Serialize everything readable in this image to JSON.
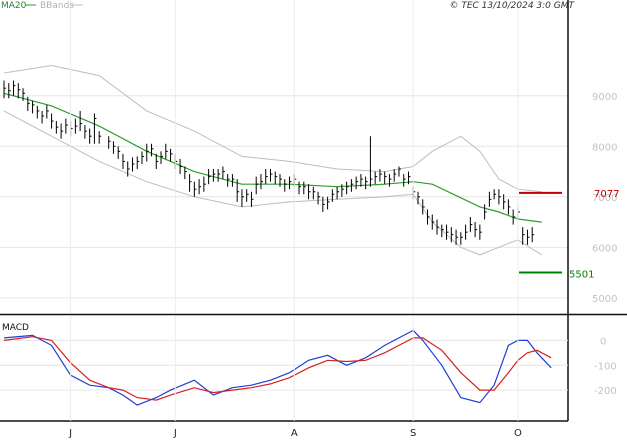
{
  "legend": {
    "ma_label": "MA20",
    "bb_label": "BBands",
    "ma_color": "#2e9e2e",
    "bb_color": "#bdbdbd"
  },
  "copyright": "© TEC 13/10/2024 3:0 GMT",
  "macd_panel": {
    "title": "MACD",
    "colors": {
      "macd": "#1f3fd6",
      "signal": "#d62020"
    }
  },
  "levels": {
    "resistance": {
      "value": 7077,
      "label": "7077",
      "color": "#c00000"
    },
    "support": {
      "value": 5501,
      "label": "5501",
      "color": "#008000"
    }
  },
  "chart_data": [
    {
      "type": "line",
      "title": "",
      "ylim": [
        4700,
        10500
      ],
      "y_ticks": [
        {
          "value": 9000,
          "label": "9000"
        },
        {
          "value": 8000,
          "label": "8000"
        },
        {
          "value": 7000,
          "label": "7000"
        },
        {
          "value": 6000,
          "label": "6000"
        },
        {
          "value": 5000,
          "label": "5000"
        }
      ],
      "x_ticks": [
        {
          "label": "J",
          "index": 14
        },
        {
          "label": "J",
          "index": 36
        },
        {
          "label": "A",
          "index": 61
        },
        {
          "label": "S",
          "index": 86
        },
        {
          "label": "O",
          "index": 108
        }
      ],
      "n_bars": 117,
      "grid": true,
      "bars_x": [
        0,
        1,
        2,
        3,
        4,
        5,
        6,
        7,
        8,
        9,
        10,
        11,
        12,
        13,
        14,
        15,
        16,
        17,
        18,
        19,
        20,
        22,
        23,
        24,
        25,
        26,
        27,
        28,
        29,
        30,
        31,
        32,
        33,
        34,
        35,
        36,
        37,
        38,
        39,
        40,
        41,
        42,
        43,
        44,
        45,
        46,
        47,
        48,
        49,
        50,
        51,
        52,
        53,
        54,
        55,
        56,
        57,
        58,
        59,
        60,
        61,
        62,
        63,
        64,
        65,
        66,
        67,
        68,
        69,
        70,
        71,
        72,
        73,
        74,
        75,
        76,
        77,
        78,
        79,
        80,
        81,
        82,
        83,
        84,
        85,
        86,
        87,
        88,
        89,
        90,
        91,
        92,
        93,
        94,
        95,
        96,
        97,
        98,
        99,
        100,
        101,
        102,
        103,
        104,
        105,
        106,
        107,
        108,
        109,
        110,
        111,
        113,
        114,
        115
      ],
      "bars_close": [
        9150,
        9100,
        9200,
        9120,
        9050,
        8850,
        8820,
        8700,
        8600,
        8700,
        8500,
        8380,
        8300,
        8420,
        8350,
        8400,
        8450,
        8300,
        8200,
        8550,
        8200,
        8100,
        8000,
        7900,
        7700,
        7550,
        7650,
        7700,
        7800,
        7900,
        7950,
        7700,
        7800,
        7900,
        7850,
        7700,
        7600,
        7500,
        7300,
        7150,
        7200,
        7250,
        7400,
        7450,
        7450,
        7500,
        7350,
        7350,
        7100,
        7000,
        7050,
        6950,
        7250,
        7300,
        7400,
        7450,
        7400,
        7350,
        7250,
        7300,
        7350,
        7200,
        7200,
        7100,
        7100,
        7000,
        6850,
        6900,
        7050,
        7100,
        7150,
        7200,
        7250,
        7300,
        7350,
        7300,
        7350,
        7400,
        7450,
        7400,
        7350,
        7450,
        7550,
        7350,
        7400,
        7100,
        7000,
        6800,
        6600,
        6500,
        6400,
        6350,
        6300,
        6250,
        6200,
        6200,
        6300,
        6450,
        6350,
        6300,
        6700,
        6950,
        7050,
        7000,
        6900,
        6800,
        6600,
        6700,
        6250,
        6200,
        6250
      ],
      "bars_high": [
        9300,
        9250,
        9300,
        9250,
        9150,
        8980,
        8900,
        8800,
        8700,
        8820,
        8650,
        8500,
        8450,
        8550,
        8500,
        8550,
        8700,
        8420,
        8350,
        8650,
        8300,
        8200,
        8100,
        8000,
        7850,
        7700,
        7780,
        7800,
        7900,
        8050,
        8050,
        7850,
        7900,
        8050,
        7950,
        7850,
        7750,
        7600,
        7450,
        7300,
        7350,
        7400,
        7550,
        7550,
        7550,
        7600,
        7450,
        7450,
        7350,
        7150,
        7150,
        7100,
        7400,
        7450,
        7550,
        7550,
        7500,
        7450,
        7350,
        7400,
        7450,
        7300,
        7300,
        7250,
        7200,
        7100,
        7000,
        7000,
        7150,
        7200,
        7250,
        7300,
        7350,
        7400,
        7450,
        7400,
        8200,
        7500,
        7550,
        7500,
        7450,
        7550,
        7600,
        7450,
        7500,
        7200,
        7100,
        6950,
        6750,
        6650,
        6550,
        6450,
        6450,
        6400,
        6350,
        6300,
        6450,
        6600,
        6500,
        6450,
        6850,
        7100,
        7150,
        7150,
        7050,
        6950,
        6750,
        6800,
        6400,
        6350,
        6400
      ],
      "bars_low": [
        8950,
        8950,
        9000,
        8950,
        8900,
        8700,
        8650,
        8550,
        8450,
        8550,
        8350,
        8250,
        8150,
        8250,
        8200,
        8250,
        8300,
        8150,
        8050,
        8050,
        8050,
        7950,
        7850,
        7750,
        7550,
        7400,
        7500,
        7550,
        7650,
        7700,
        7800,
        7550,
        7650,
        7750,
        7700,
        7550,
        7450,
        7350,
        7100,
        7000,
        7050,
        7100,
        7250,
        7300,
        7300,
        7350,
        7200,
        7200,
        6900,
        6800,
        6900,
        6800,
        7050,
        7150,
        7250,
        7300,
        7250,
        7200,
        7100,
        7150,
        7200,
        7050,
        7050,
        6950,
        6950,
        6850,
        6700,
        6750,
        6900,
        6950,
        7000,
        7050,
        7100,
        7150,
        7200,
        7150,
        7200,
        7250,
        7300,
        7250,
        7200,
        7300,
        7400,
        7200,
        7250,
        6950,
        6850,
        6650,
        6450,
        6350,
        6250,
        6200,
        6150,
        6100,
        6050,
        6050,
        6150,
        6300,
        6200,
        6150,
        6550,
        6800,
        6950,
        6850,
        6750,
        6650,
        6450,
        6550,
        6050,
        6050,
        6100
      ],
      "series": [
        {
          "name": "MA20",
          "x": [
            0,
            10,
            20,
            30,
            40,
            50,
            60,
            70,
            80,
            86,
            90,
            100,
            104,
            108,
            113
          ],
          "values": [
            9050,
            8800,
            8400,
            7900,
            7500,
            7250,
            7250,
            7200,
            7250,
            7300,
            7250,
            6800,
            6700,
            6560,
            6500
          ]
        },
        {
          "name": "BBands",
          "x": [
            0,
            10,
            20,
            30,
            40,
            50,
            60,
            70,
            80,
            86,
            90,
            96,
            100,
            104,
            108,
            113
          ],
          "values": [
            9450,
            9600,
            9400,
            8700,
            8300,
            7800,
            7700,
            7550,
            7500,
            7600,
            7900,
            8200,
            7900,
            7350,
            7150,
            7100
          ]
        },
        {
          "name": "BBands",
          "x": [
            0,
            10,
            20,
            30,
            40,
            50,
            60,
            70,
            80,
            86,
            90,
            96,
            100,
            104,
            108,
            113
          ],
          "values": [
            8700,
            8200,
            7700,
            7300,
            7000,
            6800,
            6900,
            6950,
            7000,
            7050,
            6500,
            6000,
            5850,
            6000,
            6150,
            5850
          ]
        }
      ]
    },
    {
      "type": "line",
      "title": "MACD",
      "ylim": [
        -320,
        90
      ],
      "y_ticks": [
        {
          "value": 0,
          "label": "0"
        },
        {
          "value": -100,
          "label": "-100"
        },
        {
          "value": -200,
          "label": "-200"
        }
      ],
      "x_ticks": [
        {
          "label": "J",
          "index": 14
        },
        {
          "label": "J",
          "index": 36
        },
        {
          "label": "A",
          "index": 61
        },
        {
          "label": "S",
          "index": 86
        },
        {
          "label": "O",
          "index": 108
        }
      ],
      "series": [
        {
          "name": "MACD",
          "x": [
            0,
            6,
            10,
            14,
            18,
            22,
            25,
            28,
            32,
            35,
            40,
            44,
            48,
            52,
            56,
            60,
            64,
            68,
            72,
            76,
            80,
            84,
            86,
            88,
            92,
            96,
            100,
            103,
            106,
            108,
            110,
            112,
            115
          ],
          "values": [
            10,
            20,
            -20,
            -140,
            -180,
            -190,
            -220,
            -260,
            -230,
            -200,
            -160,
            -220,
            -190,
            -180,
            -160,
            -130,
            -80,
            -60,
            -100,
            -70,
            -20,
            20,
            40,
            0,
            -100,
            -230,
            -250,
            -180,
            -20,
            0,
            0,
            -50,
            -110
          ]
        },
        {
          "name": "Signal",
          "x": [
            0,
            6,
            10,
            14,
            18,
            22,
            25,
            28,
            32,
            35,
            40,
            44,
            48,
            52,
            56,
            60,
            64,
            68,
            72,
            76,
            80,
            84,
            86,
            88,
            92,
            96,
            100,
            103,
            106,
            108,
            110,
            112,
            115
          ],
          "values": [
            0,
            15,
            0,
            -90,
            -160,
            -190,
            -200,
            -230,
            -240,
            -220,
            -190,
            -210,
            -200,
            -190,
            -175,
            -150,
            -110,
            -80,
            -85,
            -80,
            -50,
            -10,
            10,
            10,
            -40,
            -130,
            -200,
            -200,
            -130,
            -80,
            -50,
            -40,
            -70
          ]
        }
      ]
    }
  ]
}
